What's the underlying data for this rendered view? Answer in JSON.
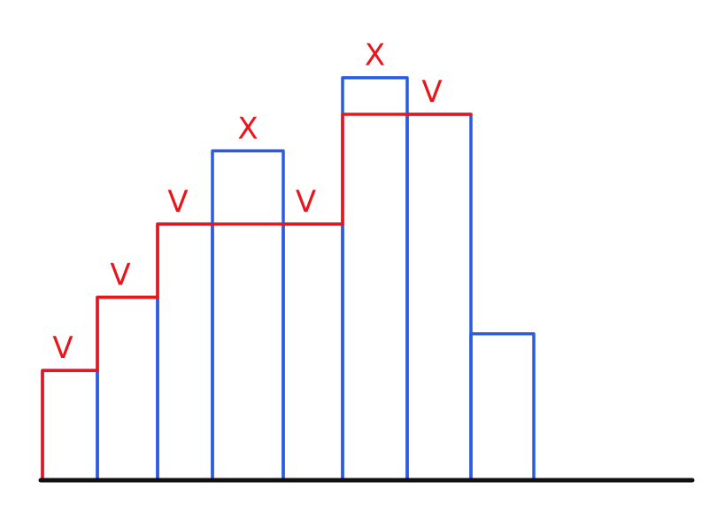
{
  "colors": {
    "bars": "#2a5be0",
    "envelope": "#e8161b",
    "baseline": "#111111",
    "labels": "#e8161b",
    "background": "#ffffff"
  },
  "chart_data": {
    "type": "bar",
    "values": [
      3,
      5,
      7,
      9,
      7,
      11,
      10,
      4
    ],
    "marks": [
      "V",
      "V",
      "V",
      "X",
      "V",
      "X",
      "V",
      ""
    ],
    "envelope": [
      3,
      5,
      7,
      7,
      7,
      10,
      10
    ],
    "title": "",
    "xlabel": "",
    "ylabel": ""
  }
}
